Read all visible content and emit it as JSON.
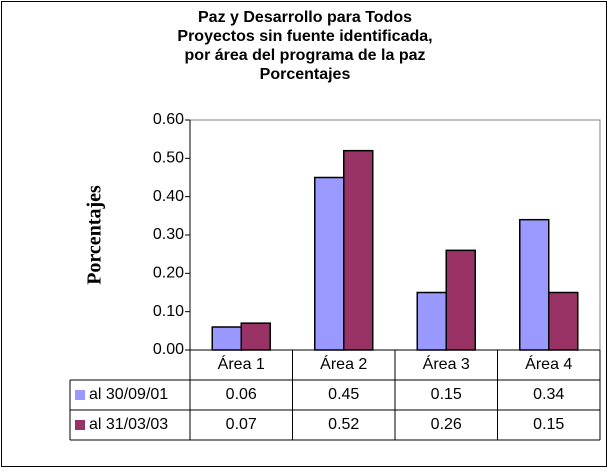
{
  "chart_data": {
    "type": "bar",
    "title": [
      "Paz y Desarrollo para Todos",
      "Proyectos sin fuente identificada,",
      "por área del programa de la paz",
      "Porcentajes"
    ],
    "y_label": "Porcentajes",
    "categories": [
      "Área 1",
      "Área 2",
      "Área 3",
      "Área 4"
    ],
    "series": [
      {
        "name": "al 30/09/01",
        "color": "#9999ff",
        "values": [
          0.06,
          0.45,
          0.15,
          0.34
        ]
      },
      {
        "name": "al 31/03/03",
        "color": "#993366",
        "values": [
          0.07,
          0.52,
          0.26,
          0.15
        ]
      }
    ],
    "ylim": [
      0,
      0.6
    ],
    "yticks": [
      {
        "value": 0,
        "label": "0.00"
      },
      {
        "value": 0.1,
        "label": "0.10"
      },
      {
        "value": 0.2,
        "label": "0.20"
      },
      {
        "value": 0.3,
        "label": "0.30"
      },
      {
        "value": 0.4,
        "label": "0.40"
      },
      {
        "value": 0.5,
        "label": "0.50"
      },
      {
        "value": 0.6,
        "label": "0.60"
      }
    ],
    "grid": false,
    "legend": "data-table"
  }
}
